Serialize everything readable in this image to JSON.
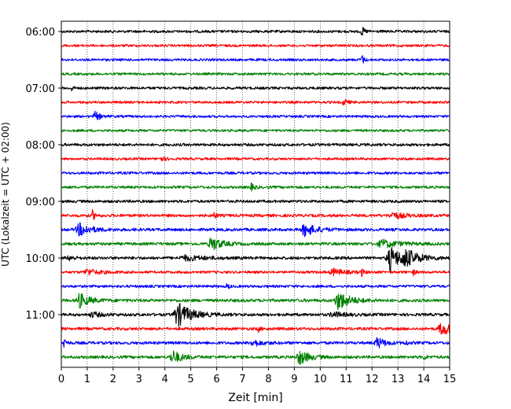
{
  "chart_data": {
    "type": "line",
    "title": "",
    "xlabel": "Zeit  [min]",
    "ylabel": "UTC (Lokalzeit = UTC + 02:00)",
    "xlim": [
      0,
      15
    ],
    "x_ticks": [
      0,
      1,
      2,
      3,
      4,
      5,
      6,
      7,
      8,
      9,
      10,
      11,
      12,
      13,
      14,
      15
    ],
    "y_ticks": [
      {
        "label": "06:00",
        "trace": 0
      },
      {
        "label": "07:00",
        "trace": 4
      },
      {
        "label": "08:00",
        "trace": 8
      },
      {
        "label": "09:00",
        "trace": 12
      },
      {
        "label": "10:00",
        "trace": 16
      },
      {
        "label": "11:00",
        "trace": 20
      }
    ],
    "grid": "vertical-dotted",
    "trace_interval_min": 15,
    "colors_cycle": [
      "#000000",
      "#ff0000",
      "#0000ff",
      "#008000"
    ],
    "traces": [
      {
        "start": "06:00",
        "color": "#000000",
        "noise": 1.6,
        "events": [
          {
            "t": 11.6,
            "amp": 6,
            "dur": 0.15
          }
        ]
      },
      {
        "start": "06:15",
        "color": "#ff0000",
        "noise": 1.5,
        "events": []
      },
      {
        "start": "06:30",
        "color": "#0000ff",
        "noise": 1.5,
        "events": [
          {
            "t": 11.6,
            "amp": 8,
            "dur": 0.1
          }
        ]
      },
      {
        "start": "06:45",
        "color": "#008000",
        "noise": 1.5,
        "events": []
      },
      {
        "start": "07:00",
        "color": "#000000",
        "noise": 1.6,
        "events": [
          {
            "t": 0.4,
            "amp": 3,
            "dur": 0.1
          }
        ]
      },
      {
        "start": "07:15",
        "color": "#ff0000",
        "noise": 1.5,
        "events": [
          {
            "t": 10.9,
            "amp": 4,
            "dur": 0.2
          }
        ]
      },
      {
        "start": "07:30",
        "color": "#0000ff",
        "noise": 1.5,
        "events": [
          {
            "t": 1.3,
            "amp": 6,
            "dur": 0.25
          }
        ]
      },
      {
        "start": "07:45",
        "color": "#008000",
        "noise": 1.5,
        "events": []
      },
      {
        "start": "08:00",
        "color": "#000000",
        "noise": 1.7,
        "events": []
      },
      {
        "start": "08:15",
        "color": "#ff0000",
        "noise": 1.5,
        "events": [
          {
            "t": 3.8,
            "amp": 2.5,
            "dur": 0.3
          }
        ]
      },
      {
        "start": "08:30",
        "color": "#0000ff",
        "noise": 1.6,
        "events": []
      },
      {
        "start": "08:45",
        "color": "#008000",
        "noise": 1.6,
        "events": [
          {
            "t": 7.3,
            "amp": 5,
            "dur": 0.2
          }
        ]
      },
      {
        "start": "09:00",
        "color": "#000000",
        "noise": 1.7,
        "events": []
      },
      {
        "start": "09:15",
        "color": "#ff0000",
        "noise": 1.8,
        "events": [
          {
            "t": 1.2,
            "amp": 6,
            "dur": 0.15
          },
          {
            "t": 5.9,
            "amp": 5,
            "dur": 0.1
          },
          {
            "t": 12.8,
            "amp": 4,
            "dur": 0.6
          }
        ]
      },
      {
        "start": "09:30",
        "color": "#0000ff",
        "noise": 1.8,
        "events": [
          {
            "t": 0.7,
            "amp": 8,
            "dur": 0.6
          },
          {
            "t": 9.4,
            "amp": 8,
            "dur": 0.6
          }
        ]
      },
      {
        "start": "09:45",
        "color": "#008000",
        "noise": 1.8,
        "events": [
          {
            "t": 5.8,
            "amp": 9,
            "dur": 0.5
          },
          {
            "t": 12.4,
            "amp": 5,
            "dur": 0.8
          }
        ]
      },
      {
        "start": "10:00",
        "color": "#000000",
        "noise": 1.8,
        "events": [
          {
            "t": 0.3,
            "amp": 3,
            "dur": 0.3
          },
          {
            "t": 4.8,
            "amp": 3,
            "dur": 1.0
          },
          {
            "t": 12.7,
            "amp": 15,
            "dur": 0.6
          },
          {
            "t": 13.3,
            "amp": 9,
            "dur": 0.7
          }
        ]
      },
      {
        "start": "10:15",
        "color": "#ff0000",
        "noise": 1.6,
        "events": [
          {
            "t": 1.0,
            "amp": 4,
            "dur": 0.6
          },
          {
            "t": 10.5,
            "amp": 4,
            "dur": 0.6
          },
          {
            "t": 11.6,
            "amp": 5,
            "dur": 0.1
          },
          {
            "t": 13.6,
            "amp": 4,
            "dur": 0.1
          }
        ]
      },
      {
        "start": "10:30",
        "color": "#0000ff",
        "noise": 1.6,
        "events": [
          {
            "t": 6.4,
            "amp": 5,
            "dur": 0.1
          }
        ]
      },
      {
        "start": "10:45",
        "color": "#008000",
        "noise": 1.9,
        "events": [
          {
            "t": 0.7,
            "amp": 9,
            "dur": 0.5
          },
          {
            "t": 10.7,
            "amp": 12,
            "dur": 0.6
          }
        ]
      },
      {
        "start": "11:00",
        "color": "#000000",
        "noise": 1.8,
        "events": [
          {
            "t": 1.2,
            "amp": 3,
            "dur": 0.5
          },
          {
            "t": 4.5,
            "amp": 15,
            "dur": 0.7
          },
          {
            "t": 10.5,
            "amp": 3,
            "dur": 0.6
          }
        ]
      },
      {
        "start": "11:15",
        "color": "#ff0000",
        "noise": 1.8,
        "events": [
          {
            "t": 7.6,
            "amp": 4,
            "dur": 0.1
          },
          {
            "t": 14.7,
            "amp": 8,
            "dur": 0.6
          }
        ]
      },
      {
        "start": "11:30",
        "color": "#0000ff",
        "noise": 1.8,
        "events": [
          {
            "t": 0.1,
            "amp": 8,
            "dur": 0.1
          },
          {
            "t": 7.4,
            "amp": 4,
            "dur": 0.5
          },
          {
            "t": 12.2,
            "amp": 7,
            "dur": 0.4
          },
          {
            "t": 13.3,
            "amp": 4,
            "dur": 0.1
          }
        ]
      },
      {
        "start": "11:45",
        "color": "#008000",
        "noise": 1.8,
        "events": [
          {
            "t": 4.3,
            "amp": 8,
            "dur": 0.5
          },
          {
            "t": 9.2,
            "amp": 9,
            "dur": 0.5
          },
          {
            "t": 14.0,
            "amp": 4,
            "dur": 0.1
          }
        ]
      }
    ]
  }
}
